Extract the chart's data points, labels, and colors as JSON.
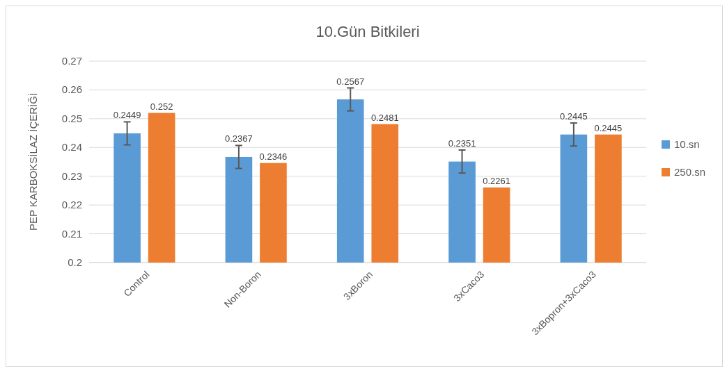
{
  "chart_data": {
    "type": "bar",
    "title": "10.Gün Bitkileri",
    "ylabel": "PEP KARBOKSİLAZ İÇERİĞİ",
    "categories": [
      "Control",
      "Non-Boron",
      "3xBoron",
      "3xCaco3",
      "3xBopron+3xCaco3"
    ],
    "series": [
      {
        "name": "10.sn",
        "color": "#5b9bd5",
        "values": [
          0.2449,
          0.2367,
          0.2567,
          0.2351,
          0.2445
        ],
        "errors": [
          0.004,
          0.004,
          0.004,
          0.004,
          0.004
        ]
      },
      {
        "name": "250.sn",
        "color": "#ed7d31",
        "values": [
          0.252,
          0.2346,
          0.2481,
          0.2261,
          0.2445
        ]
      }
    ],
    "ylim": [
      0.2,
      0.27
    ],
    "yticks": [
      0.2,
      0.21,
      0.22,
      0.23,
      0.24,
      0.25,
      0.26,
      0.27
    ],
    "grid": "y",
    "legend": "right",
    "data_labels": true
  }
}
